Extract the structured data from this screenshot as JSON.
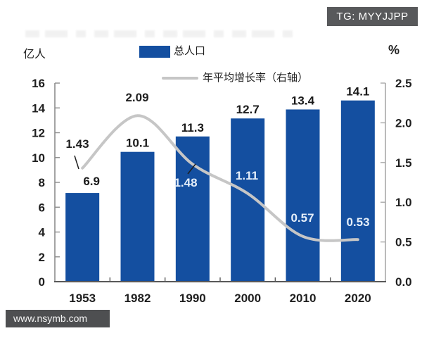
{
  "badge": {
    "label": "TG: MYYJJPP"
  },
  "watermark": {
    "label": "www.nsymb.com"
  },
  "colors": {
    "bar": "#144FA0",
    "line": "#C6C6C6",
    "leader": "#1f1f1f",
    "axis_left": "#8C8C8C",
    "axis_right": "#A9A9A9",
    "baseline": "#595959",
    "badge_bg": "#58595B",
    "watermark_bg": "#4E4F51"
  },
  "chart_data": {
    "type": "combo: bar + line",
    "categories": [
      "1953",
      "1982",
      "1990",
      "2000",
      "2010",
      "2020"
    ],
    "series": [
      {
        "name": "总人口",
        "type": "bar",
        "axis": "left",
        "unit": "亿人",
        "values": [
          6.9,
          10.1,
          11.3,
          12.7,
          13.4,
          14.1
        ]
      },
      {
        "name": "年平均增长率（右轴）",
        "type": "line",
        "axis": "right",
        "unit": "%",
        "values": [
          1.43,
          2.09,
          1.48,
          1.11,
          0.57,
          0.53
        ]
      }
    ],
    "left_axis": {
      "title": "亿人",
      "min": 0,
      "max": 16,
      "ticks": [
        "0",
        "2",
        "4",
        "6",
        "8",
        "10",
        "12",
        "14",
        "16"
      ]
    },
    "right_axis": {
      "title": "%",
      "min": 0,
      "max": 2.5,
      "ticks": [
        "0.0",
        "0.5",
        "1.0",
        "1.5",
        "2.0",
        "2.5"
      ]
    },
    "legend_position": "top-center",
    "grid": false
  }
}
